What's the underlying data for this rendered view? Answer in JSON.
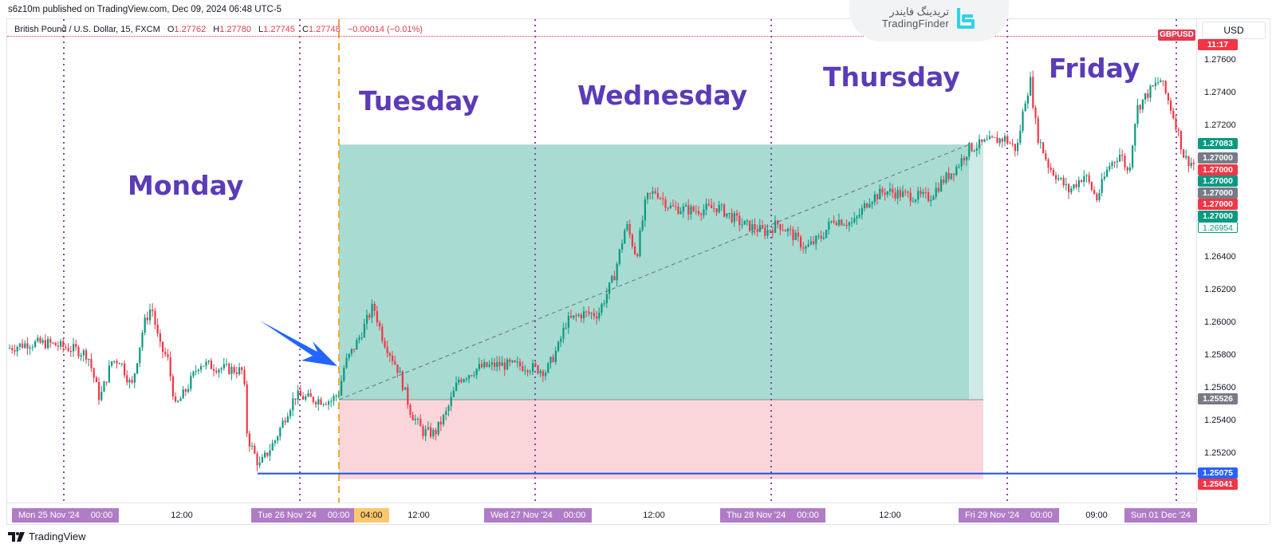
{
  "header": {
    "published": "s6z10m published on TradingView.com, Dec 09, 2024 06:48 UTC-5",
    "symbol_desc": "British Pound / U.S. Dollar, 15, FXCM",
    "open_label": "O",
    "open": "1.27762",
    "high_label": "H",
    "high": "1.27780",
    "low_label": "L",
    "low": "1.27745",
    "close_label": "C",
    "close": "1.27748",
    "change": "−0.00014 (−0.01%)"
  },
  "branding": {
    "watermark_fa": "تریدینگ فایندر",
    "watermark_en": "TradingFinder",
    "footer": "TradingView"
  },
  "price_axis": {
    "currency": "USD",
    "symbol_tag": "GBPUSD",
    "countdown": "11:17",
    "ticks": [
      "1.27600",
      "1.27400",
      "1.27200",
      "1.26400",
      "1.26200",
      "1.26000",
      "1.25800",
      "1.25600",
      "1.25400",
      "1.25200"
    ],
    "labels": [
      {
        "value": "1.27083",
        "color": "#089981",
        "style": "filled"
      },
      {
        "value": "1.27000",
        "color": "#787b86",
        "style": "filled"
      },
      {
        "value": "1.27000",
        "color": "#f23645",
        "style": "filled"
      },
      {
        "value": "1.27000",
        "color": "#089981",
        "style": "filled"
      },
      {
        "value": "1.27000",
        "color": "#787b86",
        "style": "filled"
      },
      {
        "value": "1.27000",
        "color": "#f23645",
        "style": "filled"
      },
      {
        "value": "1.27000",
        "color": "#089981",
        "style": "filled"
      },
      {
        "value": "1.26954",
        "color": "#089981",
        "style": "outline"
      },
      {
        "value": "1.25526",
        "color": "#787b86",
        "style": "filled"
      },
      {
        "value": "1.25075",
        "color": "#2962ff",
        "style": "filled"
      },
      {
        "value": "1.25041",
        "color": "#f23645",
        "style": "filled"
      }
    ]
  },
  "time_axis": {
    "labels": [
      {
        "text": "Mon 25 Nov '24",
        "time": "00:00",
        "type": "box"
      },
      {
        "text": "12:00",
        "type": "plain"
      },
      {
        "text": "Tue 26 Nov '24",
        "time": "00:00",
        "type": "box"
      },
      {
        "text": "04:00",
        "type": "orange"
      },
      {
        "text": "12:00",
        "type": "plain"
      },
      {
        "text": "Wed 27 Nov '24",
        "time": "00:00",
        "type": "box"
      },
      {
        "text": "12:00",
        "type": "plain"
      },
      {
        "text": "Thu 28 Nov '24",
        "time": "00:00",
        "type": "box"
      },
      {
        "text": "12:00",
        "type": "plain"
      },
      {
        "text": "Fri 29 Nov '24",
        "time": "00:00",
        "type": "box"
      },
      {
        "text": "09:00",
        "type": "plain"
      },
      {
        "text": "Sun 01 Dec '24",
        "type": "box"
      }
    ]
  },
  "annotations": {
    "days": [
      "Monday",
      "Tuesday",
      "Wednesday",
      "Thursday",
      "Friday"
    ],
    "long_position": {
      "entry": "1.25526",
      "target": "1.27083",
      "stop": "1.25041"
    },
    "horizontal_line": "1.25075",
    "arrow": "blue arrow pointing to Tuesday entry"
  },
  "colors": {
    "bull": "#089981",
    "bear": "#f23645",
    "profit_zone": "#a8dbd2",
    "loss_zone": "#fad6da",
    "day_label": "#5b3bb8",
    "session_line": "#8e44ad",
    "hline": "#1e50e6",
    "arrow": "#2266ff",
    "entry_line": "#f0a830"
  },
  "chart_data": {
    "type": "candlestick",
    "title": "British Pound / U.S. Dollar, 15, FXCM",
    "xlabel": "",
    "ylabel": "USD",
    "ylim": [
      1.2495,
      1.277
    ],
    "x_range": [
      "Mon 25 Nov '24",
      "Mon 02 Dec '24"
    ],
    "legend": [],
    "path_points": [
      [
        10,
        1.2584
      ],
      [
        35,
        1.2587
      ],
      [
        60,
        1.2587
      ],
      [
        95,
        1.2583
      ],
      [
        110,
        1.258
      ],
      [
        125,
        1.2553
      ],
      [
        140,
        1.2576
      ],
      [
        150,
        1.2577
      ],
      [
        165,
        1.256
      ],
      [
        180,
        1.2598
      ],
      [
        190,
        1.261
      ],
      [
        200,
        1.2585
      ],
      [
        210,
        1.2578
      ],
      [
        220,
        1.2548
      ],
      [
        235,
        1.256
      ],
      [
        250,
        1.2575
      ],
      [
        275,
        1.2572
      ],
      [
        305,
        1.257
      ],
      [
        310,
        1.253
      ],
      [
        325,
        1.2512
      ],
      [
        345,
        1.2528
      ],
      [
        360,
        1.2545
      ],
      [
        370,
        1.2555
      ],
      [
        390,
        1.2553
      ],
      [
        415,
        1.2552
      ],
      [
        425,
        1.2557
      ],
      [
        432,
        1.2574
      ],
      [
        450,
        1.259
      ],
      [
        468,
        1.261
      ],
      [
        480,
        1.259
      ],
      [
        500,
        1.257
      ],
      [
        515,
        1.2545
      ],
      [
        530,
        1.2533
      ],
      [
        545,
        1.2532
      ],
      [
        560,
        1.2545
      ],
      [
        575,
        1.2565
      ],
      [
        600,
        1.2572
      ],
      [
        625,
        1.2574
      ],
      [
        660,
        1.2573
      ],
      [
        685,
        1.257
      ],
      [
        700,
        1.2585
      ],
      [
        710,
        1.26
      ],
      [
        730,
        1.2605
      ],
      [
        750,
        1.2605
      ],
      [
        770,
        1.2628
      ],
      [
        785,
        1.266
      ],
      [
        798,
        1.264
      ],
      [
        810,
        1.2675
      ],
      [
        822,
        1.268
      ],
      [
        840,
        1.267
      ],
      [
        870,
        1.2668
      ],
      [
        900,
        1.267
      ],
      [
        930,
        1.266
      ],
      [
        960,
        1.2655
      ],
      [
        975,
        1.266
      ],
      [
        990,
        1.2655
      ],
      [
        1010,
        1.2645
      ],
      [
        1030,
        1.2652
      ],
      [
        1045,
        1.2663
      ],
      [
        1070,
        1.266
      ],
      [
        1090,
        1.2675
      ],
      [
        1110,
        1.268
      ],
      [
        1140,
        1.2677
      ],
      [
        1165,
        1.2676
      ],
      [
        1180,
        1.2685
      ],
      [
        1200,
        1.2695
      ],
      [
        1215,
        1.2706
      ],
      [
        1240,
        1.271
      ],
      [
        1260,
        1.2712
      ],
      [
        1275,
        1.2705
      ],
      [
        1285,
        1.2735
      ],
      [
        1292,
        1.2747
      ],
      [
        1300,
        1.2715
      ],
      [
        1315,
        1.2695
      ],
      [
        1340,
        1.268
      ],
      [
        1360,
        1.269
      ],
      [
        1375,
        1.2675
      ],
      [
        1390,
        1.2695
      ],
      [
        1405,
        1.2703
      ],
      [
        1415,
        1.269
      ],
      [
        1425,
        1.273
      ],
      [
        1440,
        1.274
      ],
      [
        1455,
        1.2748
      ],
      [
        1465,
        1.2735
      ],
      [
        1475,
        1.272
      ],
      [
        1485,
        1.27
      ],
      [
        1498,
        1.2696
      ]
    ]
  }
}
